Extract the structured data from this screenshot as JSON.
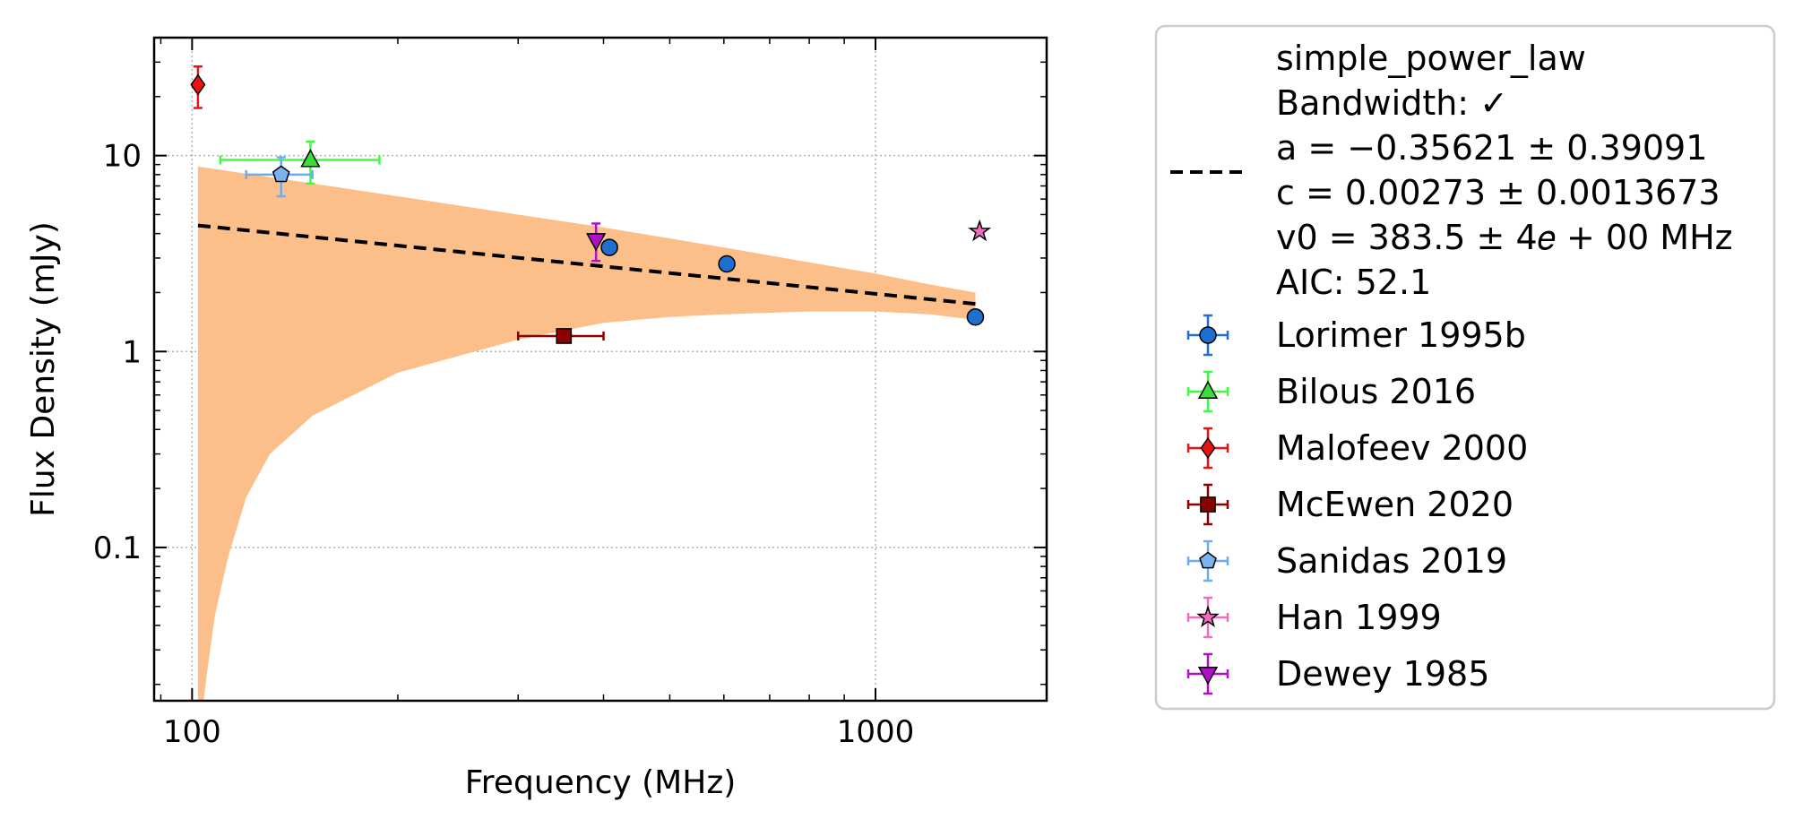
{
  "chart_data": {
    "type": "scatter",
    "xlabel": "Frequency (MHz)",
    "ylabel": "Flux Density (mJy)",
    "xscale": "log",
    "yscale": "log",
    "xlim": [
      88,
      1780
    ],
    "ylim": [
      0.0165,
      40
    ],
    "xticks": [
      {
        "value": 100,
        "label": "100"
      },
      {
        "value": 1000,
        "label": "1000"
      }
    ],
    "yticks": [
      {
        "value": 0.1,
        "label": "0.1"
      },
      {
        "value": 1,
        "label": "1"
      },
      {
        "value": 10,
        "label": "10"
      }
    ],
    "grid": true,
    "legend_position": "outside-right",
    "model": {
      "name": "simple_power_law",
      "legend_lines": [
        "simple_power_law",
        "Bandwidth: ✓",
        "a = −0.35621 ± 0.39091",
        "c = 0.00273 ± 0.0013673",
        "v0 = 383.5 ± 4𝑒 + 00 MHz",
        "AIC: 52.1"
      ],
      "color": "#000000",
      "fit_line": [
        {
          "x": 102,
          "y": 4.4
        },
        {
          "x": 1400,
          "y": 1.75
        }
      ],
      "uncertainty_band": {
        "color": "#fdbf8a",
        "upper": [
          {
            "x": 102,
            "y": 8.8
          },
          {
            "x": 150,
            "y": 7.2
          },
          {
            "x": 200,
            "y": 6.2
          },
          {
            "x": 300,
            "y": 5.0
          },
          {
            "x": 400,
            "y": 4.3
          },
          {
            "x": 600,
            "y": 3.4
          },
          {
            "x": 800,
            "y": 2.85
          },
          {
            "x": 1000,
            "y": 2.5
          },
          {
            "x": 1200,
            "y": 2.2
          },
          {
            "x": 1400,
            "y": 2.0
          }
        ],
        "lower": [
          {
            "x": 1400,
            "y": 1.45
          },
          {
            "x": 1200,
            "y": 1.55
          },
          {
            "x": 1000,
            "y": 1.6
          },
          {
            "x": 800,
            "y": 1.6
          },
          {
            "x": 600,
            "y": 1.55
          },
          {
            "x": 500,
            "y": 1.5
          },
          {
            "x": 400,
            "y": 1.4
          },
          {
            "x": 300,
            "y": 1.15
          },
          {
            "x": 200,
            "y": 0.78
          },
          {
            "x": 150,
            "y": 0.47
          },
          {
            "x": 130,
            "y": 0.3
          },
          {
            "x": 120,
            "y": 0.18
          },
          {
            "x": 113,
            "y": 0.09
          },
          {
            "x": 108,
            "y": 0.045
          },
          {
            "x": 105,
            "y": 0.022
          },
          {
            "x": 104,
            "y": 0.0165
          },
          {
            "x": 102,
            "y": 0.0165
          }
        ]
      }
    },
    "series": [
      {
        "name": "Lorimer 1995b",
        "marker": "circle",
        "color": "#1f6fd1",
        "ecolor": "#1f6fd1",
        "points": [
          {
            "x": 408,
            "y": 3.4,
            "yerr": [
              0.0,
              0.0
            ],
            "xerr": [
              0,
              0
            ]
          },
          {
            "x": 606,
            "y": 2.8,
            "yerr": [
              0.0,
              0.0
            ],
            "xerr": [
              0,
              0
            ]
          },
          {
            "x": 1400,
            "y": 1.5,
            "yerr": [
              0.0,
              0.0
            ],
            "xerr": [
              0,
              0
            ]
          }
        ]
      },
      {
        "name": "Bilous 2016",
        "marker": "triangle-up",
        "color": "#3ddc3d",
        "ecolor": "#3cff3c",
        "points": [
          {
            "x": 149,
            "y": 9.5,
            "yerr": [
              2.3,
              2.3
            ],
            "xerr": [
              39,
              39
            ]
          }
        ]
      },
      {
        "name": "Malofeev 2000",
        "marker": "diamond",
        "color": "#ee1111",
        "ecolor": "#ee1111",
        "points": [
          {
            "x": 102,
            "y": 23,
            "yerr": [
              5.5,
              5.5
            ],
            "xerr": [
              0,
              0
            ]
          }
        ]
      },
      {
        "name": "McEwen 2020",
        "marker": "square",
        "color": "#8b0000",
        "ecolor": "#8b0000",
        "points": [
          {
            "x": 350,
            "y": 1.2,
            "yerr": [
              0.0,
              0.0
            ],
            "xerr": [
              50,
              50
            ]
          }
        ]
      },
      {
        "name": "Sanidas 2019",
        "marker": "pentagon",
        "color": "#7ab4f0",
        "ecolor": "#6aaeee",
        "points": [
          {
            "x": 135,
            "y": 8.0,
            "yerr": [
              1.8,
              1.8
            ],
            "xerr": [
              15,
              15
            ]
          }
        ]
      },
      {
        "name": "Han 1999",
        "marker": "star",
        "color": "#f06cc0",
        "ecolor": "#f06cc0",
        "points": [
          {
            "x": 1420,
            "y": 4.1,
            "yerr": [
              0.0,
              0.0
            ],
            "xerr": [
              0,
              0
            ]
          }
        ]
      },
      {
        "name": "Dewey 1985",
        "marker": "triangle-down",
        "color": "#b010c8",
        "ecolor": "#b010c8",
        "points": [
          {
            "x": 390,
            "y": 3.7,
            "yerr": [
              0.8,
              0.8
            ],
            "xerr": [
              0,
              0
            ]
          }
        ]
      }
    ]
  }
}
